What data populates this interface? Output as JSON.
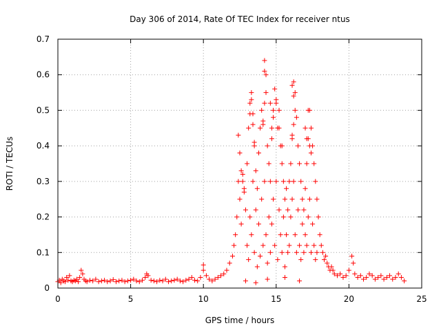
{
  "chart_data": {
    "type": "scatter",
    "title": "Day 306 of 2014, Rate Of TEC Index for receiver ntus",
    "xlabel": "GPS time / hours",
    "ylabel": "ROTI / TECUs",
    "xlim": [
      0,
      25
    ],
    "ylim": [
      0,
      0.7
    ],
    "xticks": [
      0,
      5,
      10,
      15,
      20,
      25
    ],
    "xtick_labels": [
      "0",
      "5",
      "10",
      "15",
      "20",
      "25"
    ],
    "yticks": [
      0,
      0.1,
      0.2,
      0.3,
      0.4,
      0.5,
      0.6,
      0.7
    ],
    "ytick_labels": [
      "0",
      "0.1",
      "0.2",
      "0.3",
      "0.4",
      "0.5",
      "0.6",
      "0.7"
    ],
    "grid": true,
    "marker": "+",
    "series": [
      {
        "name": "ROTI",
        "color": "#ff0000",
        "x": [
          0.0,
          0.1,
          0.2,
          0.3,
          0.4,
          0.5,
          0.6,
          0.7,
          0.8,
          0.9,
          1.0,
          1.1,
          1.2,
          1.3,
          1.4,
          1.5,
          1.6,
          1.7,
          1.8,
          1.9,
          2.0,
          2.2,
          2.4,
          2.6,
          2.8,
          3.0,
          3.2,
          3.4,
          3.6,
          3.8,
          4.0,
          4.2,
          4.4,
          4.6,
          4.8,
          5.0,
          5.2,
          5.4,
          5.6,
          5.8,
          6.0,
          6.1,
          6.2,
          6.4,
          6.6,
          6.8,
          7.0,
          7.2,
          7.4,
          7.6,
          7.8,
          8.0,
          8.2,
          8.4,
          8.6,
          8.8,
          9.0,
          9.2,
          9.4,
          9.6,
          9.8,
          10.0,
          10.0,
          10.2,
          10.4,
          10.6,
          10.8,
          11.0,
          11.2,
          11.4,
          11.6,
          11.8,
          12.0,
          12.1,
          12.2,
          12.3,
          12.4,
          12.5,
          12.6,
          12.7,
          12.8,
          12.9,
          13.0,
          13.0,
          13.1,
          13.1,
          13.2,
          13.2,
          13.3,
          13.3,
          13.4,
          13.4,
          13.5,
          13.5,
          13.6,
          13.6,
          13.7,
          13.7,
          13.8,
          13.8,
          13.9,
          13.9,
          14.0,
          14.0,
          14.1,
          14.1,
          14.2,
          14.2,
          14.3,
          14.3,
          14.4,
          14.4,
          14.5,
          14.5,
          14.6,
          14.6,
          14.7,
          14.7,
          14.8,
          14.8,
          14.9,
          14.9,
          15.0,
          15.0,
          15.1,
          15.1,
          15.2,
          15.2,
          15.3,
          15.3,
          15.4,
          15.4,
          15.5,
          15.5,
          15.6,
          15.6,
          15.7,
          15.7,
          15.8,
          15.8,
          15.9,
          15.9,
          16.0,
          16.0,
          16.1,
          16.1,
          16.2,
          16.2,
          16.3,
          16.3,
          16.4,
          16.4,
          16.5,
          16.5,
          16.6,
          16.6,
          16.7,
          16.7,
          16.8,
          16.8,
          16.9,
          16.9,
          17.0,
          17.0,
          17.1,
          17.1,
          17.2,
          17.2,
          17.3,
          17.3,
          17.4,
          17.4,
          17.5,
          17.5,
          17.6,
          17.6,
          17.7,
          17.7,
          17.8,
          17.8,
          17.9,
          18.0,
          18.1,
          18.2,
          18.3,
          18.4,
          18.5,
          18.6,
          18.7,
          18.8,
          18.9,
          19.0,
          19.2,
          19.4,
          19.6,
          19.8,
          20.0,
          20.2,
          20.3,
          20.4,
          20.6,
          20.8,
          21.0,
          21.2,
          21.4,
          21.6,
          21.8,
          22.0,
          22.2,
          22.4,
          22.6,
          22.8,
          23.0,
          23.2,
          23.4,
          23.6,
          23.8,
          12.4,
          12.5,
          12.6,
          12.7,
          12.8,
          13.2,
          13.3,
          13.4,
          13.5,
          14.1,
          14.2,
          14.3,
          14.2,
          14.6,
          14.7,
          14.8,
          15.0,
          15.2,
          15.4,
          16.1,
          16.2,
          16.3,
          16.1,
          16.2,
          17.0,
          17.1,
          17.2,
          17.3,
          17.4,
          12.9,
          13.6,
          14.4,
          15.6,
          16.6
        ],
        "y": [
          0.018,
          0.022,
          0.015,
          0.025,
          0.02,
          0.018,
          0.03,
          0.022,
          0.035,
          0.02,
          0.018,
          0.022,
          0.02,
          0.025,
          0.018,
          0.03,
          0.05,
          0.04,
          0.025,
          0.02,
          0.018,
          0.022,
          0.02,
          0.025,
          0.018,
          0.02,
          0.022,
          0.018,
          0.02,
          0.024,
          0.018,
          0.02,
          0.022,
          0.018,
          0.02,
          0.022,
          0.025,
          0.02,
          0.018,
          0.022,
          0.03,
          0.04,
          0.035,
          0.022,
          0.02,
          0.018,
          0.022,
          0.02,
          0.025,
          0.018,
          0.02,
          0.022,
          0.025,
          0.02,
          0.018,
          0.022,
          0.025,
          0.03,
          0.022,
          0.02,
          0.03,
          0.065,
          0.05,
          0.035,
          0.025,
          0.02,
          0.025,
          0.03,
          0.035,
          0.04,
          0.05,
          0.07,
          0.09,
          0.12,
          0.15,
          0.2,
          0.3,
          0.25,
          0.18,
          0.32,
          0.28,
          0.22,
          0.35,
          0.12,
          0.45,
          0.08,
          0.52,
          0.2,
          0.55,
          0.15,
          0.49,
          0.3,
          0.4,
          0.1,
          0.33,
          0.22,
          0.28,
          0.06,
          0.38,
          0.18,
          0.45,
          0.09,
          0.5,
          0.25,
          0.46,
          0.12,
          0.64,
          0.3,
          0.6,
          0.15,
          0.4,
          0.07,
          0.35,
          0.2,
          0.3,
          0.1,
          0.42,
          0.18,
          0.48,
          0.25,
          0.56,
          0.12,
          0.52,
          0.3,
          0.45,
          0.08,
          0.5,
          0.22,
          0.4,
          0.15,
          0.35,
          0.1,
          0.3,
          0.2,
          0.25,
          0.06,
          0.28,
          0.15,
          0.22,
          0.1,
          0.3,
          0.12,
          0.35,
          0.2,
          0.43,
          0.25,
          0.58,
          0.3,
          0.55,
          0.15,
          0.48,
          0.1,
          0.4,
          0.22,
          0.35,
          0.12,
          0.3,
          0.08,
          0.25,
          0.18,
          0.22,
          0.1,
          0.28,
          0.15,
          0.35,
          0.12,
          0.42,
          0.2,
          0.5,
          0.25,
          0.45,
          0.1,
          0.4,
          0.18,
          0.35,
          0.12,
          0.3,
          0.08,
          0.25,
          0.1,
          0.2,
          0.15,
          0.12,
          0.1,
          0.08,
          0.09,
          0.07,
          0.06,
          0.05,
          0.06,
          0.05,
          0.04,
          0.035,
          0.04,
          0.03,
          0.035,
          0.05,
          0.09,
          0.07,
          0.04,
          0.03,
          0.035,
          0.025,
          0.03,
          0.04,
          0.035,
          0.025,
          0.03,
          0.035,
          0.025,
          0.03,
          0.035,
          0.025,
          0.03,
          0.04,
          0.03,
          0.02,
          0.43,
          0.38,
          0.33,
          0.3,
          0.27,
          0.49,
          0.53,
          0.46,
          0.41,
          0.47,
          0.61,
          0.55,
          0.52,
          0.52,
          0.45,
          0.5,
          0.53,
          0.45,
          0.4,
          0.57,
          0.54,
          0.5,
          0.42,
          0.46,
          0.45,
          0.42,
          0.5,
          0.4,
          0.38,
          0.02,
          0.015,
          0.025,
          0.03,
          0.02
        ]
      }
    ]
  }
}
